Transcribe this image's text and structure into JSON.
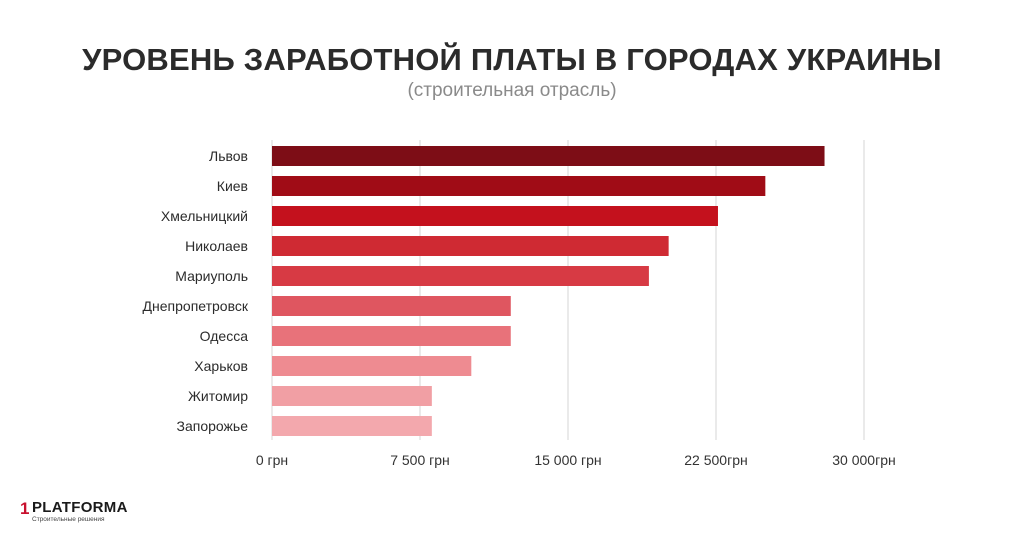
{
  "chart_data": {
    "type": "bar",
    "orientation": "horizontal",
    "title": "УРОВЕНЬ ЗАРАБОТНОЙ ПЛАТЫ В ГОРОДАХ УКРАИНЫ",
    "subtitle": "(строительная отрасль)",
    "categories": [
      "Львов",
      "Киев",
      "Хмельницкий",
      "Николаев",
      "Мариуполь",
      "Днепропетровск",
      "Одесса",
      "Харьков",
      "Житомир",
      "Запорожье"
    ],
    "values": [
      28000,
      25000,
      22600,
      20100,
      19100,
      12100,
      12100,
      10100,
      8100,
      8100
    ],
    "bar_colors": [
      "#7d0d16",
      "#a00c16",
      "#c4111d",
      "#cf2a33",
      "#d73a44",
      "#df5660",
      "#e8727a",
      "#ee8b91",
      "#f19fa4",
      "#f3a8ad"
    ],
    "xlim": [
      0,
      30000
    ],
    "xticks": [
      0,
      7500,
      15000,
      22500,
      30000
    ],
    "xtick_labels": [
      "0 грн",
      "7 500 грн",
      "15 000 грн",
      "22 500грн",
      "30 000грн"
    ],
    "grid": true
  },
  "logo": {
    "mark": "1",
    "name": "PLATFORMA",
    "tagline": "Строительные решения"
  }
}
